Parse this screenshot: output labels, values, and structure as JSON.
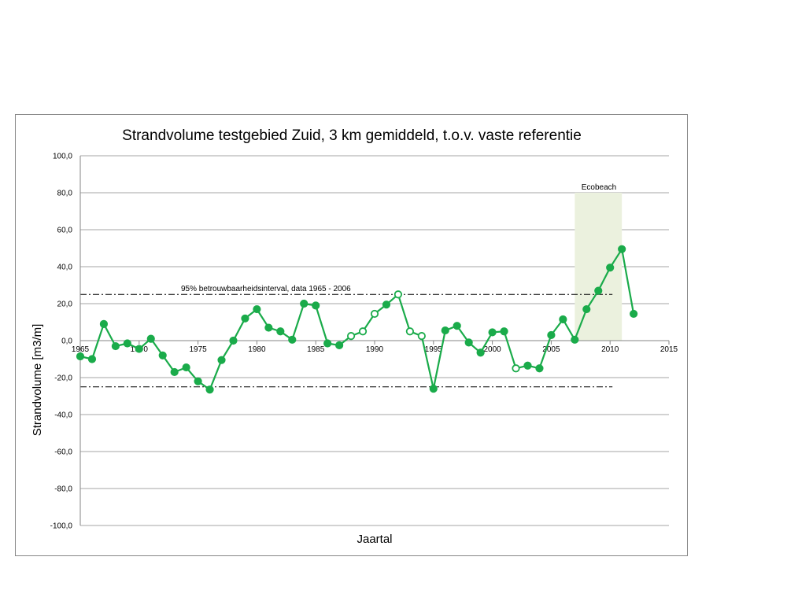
{
  "chart_data": {
    "type": "line",
    "title": "Strandvolume testgebied Zuid, 3 km gemiddeld, t.o.v. vaste referentie",
    "xlabel": "Jaartal",
    "ylabel": "Strandvolume  [m3/m]",
    "xlim": [
      1965,
      2015
    ],
    "ylim": [
      -100,
      100
    ],
    "x_ticks": [
      1965,
      1970,
      1975,
      1980,
      1985,
      1990,
      1995,
      2000,
      2005,
      2010,
      2015
    ],
    "x_tick_labels": [
      "1965",
      "1970",
      "1975",
      "1980",
      "1985",
      "1990",
      "1995",
      "2000",
      "2005",
      "2010",
      "2015"
    ],
    "y_ticks": [
      -100,
      -80,
      -60,
      -40,
      -20,
      0,
      20,
      40,
      60,
      80,
      100
    ],
    "y_tick_labels": [
      "-100,0",
      "-80,0",
      "-60,0",
      "-40,0",
      "-20,0",
      "0,0",
      "20,0",
      "40,0",
      "60,0",
      "80,0",
      "100,0"
    ],
    "grid": "horizontal",
    "line_color": "#1aab4a",
    "series": [
      {
        "x": [
          1965,
          1966,
          1967,
          1968,
          1969,
          1970,
          1971,
          1972,
          1973,
          1974,
          1975,
          1976,
          1977,
          1978,
          1979,
          1980,
          1981,
          1982,
          1983,
          1984,
          1985,
          1986,
          1987,
          1988,
          1989,
          1990,
          1991,
          1992,
          1993,
          1994,
          1995,
          1996,
          1997,
          1998,
          1999,
          2000,
          2001,
          2002,
          2003,
          2004,
          2005,
          2006,
          2007,
          2008,
          2009,
          2010,
          2011,
          2012
        ],
        "values": [
          -8.5,
          -10,
          9,
          -3,
          -1.5,
          -4.5,
          1,
          -8,
          -17,
          -14.5,
          -22,
          -26.5,
          -10.5,
          0,
          12,
          17,
          7,
          5,
          0.5,
          20,
          19,
          -1.5,
          -2.5,
          2.5,
          5,
          14.5,
          19.5,
          25,
          5,
          2.5,
          -26,
          5.5,
          8,
          -1,
          -6.5,
          4.5,
          5,
          -15,
          -13.5,
          -15,
          3,
          11.5,
          0.5,
          17,
          27,
          39.5,
          49.5,
          14.5
        ],
        "marker_fill": [
          "filled",
          "filled",
          "filled",
          "filled",
          "filled",
          "filled",
          "filled",
          "filled",
          "filled",
          "filled",
          "filled",
          "filled",
          "filled",
          "filled",
          "filled",
          "filled",
          "filled",
          "filled",
          "filled",
          "filled",
          "filled",
          "filled",
          "filled",
          "open",
          "open",
          "open",
          "filled",
          "open",
          "open",
          "open",
          "filled",
          "filled",
          "filled",
          "filled",
          "filled",
          "filled",
          "filled",
          "open",
          "filled",
          "filled",
          "filled",
          "filled",
          "filled",
          "filled",
          "filled",
          "filled",
          "filled",
          "filled"
        ]
      }
    ],
    "ecobeach_span": {
      "label": "Ecobeach",
      "x_from": 2007,
      "x_to": 2011,
      "y_top": 80,
      "color": "#ebf1de"
    },
    "confidence_band": {
      "label": "95% betrouwbaarheidsinterval, data 1965 - 2006",
      "upper": 25,
      "lower": -25,
      "x_from": 1965,
      "x_to": 2010.2
    }
  }
}
